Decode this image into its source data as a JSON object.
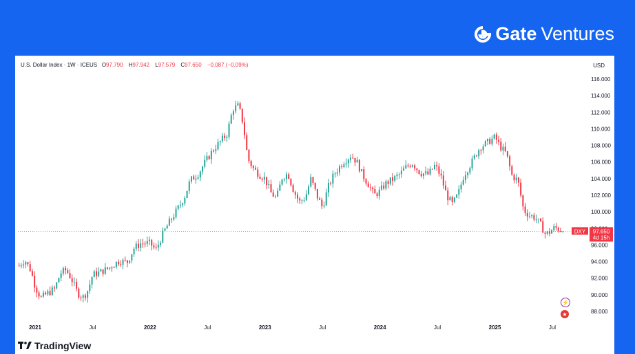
{
  "brand": {
    "mark": "Gate",
    "suffix": "Ventures",
    "icon": "gate-logo-icon"
  },
  "header": {
    "symbol": "U.S. Dollar Index · 1W · ICEUS",
    "o_label": "O",
    "o_val": "97.790",
    "h_label": "H",
    "h_val": "97.942",
    "l_label": "L",
    "l_val": "97.579",
    "c_label": "C",
    "c_val": "97.650",
    "change": "−0.087 (−0.09%)"
  },
  "currency": "USD",
  "price_tag": {
    "ticker": "DXY",
    "price": "97.650",
    "countdown": "4d 15h"
  },
  "footer": {
    "logo_text": "TradingView"
  },
  "icons": [
    "lightning-icon",
    "us-flag-icon"
  ],
  "colors": {
    "up": "#26a69a",
    "down": "#f23645",
    "background": "#1565f0"
  },
  "chart_data": {
    "type": "candlestick",
    "interval": "1W",
    "y_ticks": [
      "88.000",
      "90.000",
      "92.000",
      "94.000",
      "96.000",
      "98.000",
      "100.000",
      "102.000",
      "104.000",
      "106.000",
      "108.000",
      "110.000",
      "112.000",
      "114.000",
      "116.000"
    ],
    "x_ticks": [
      {
        "label": "2021",
        "t": 0.0
      },
      {
        "label": "Jul",
        "t": 0.5
      },
      {
        "label": "2022",
        "t": 1.0
      },
      {
        "label": "Jul",
        "t": 1.5
      },
      {
        "label": "2023",
        "t": 2.0
      },
      {
        "label": "Jul",
        "t": 2.5
      },
      {
        "label": "2024",
        "t": 3.0
      },
      {
        "label": "Jul",
        "t": 3.5
      },
      {
        "label": "2025",
        "t": 4.0
      },
      {
        "label": "Jul",
        "t": 4.5
      }
    ],
    "ylim": [
      87,
      117
    ],
    "xlim": [
      -0.15,
      4.65
    ],
    "last_price": 97.65,
    "path_points": [
      [
        -0.14,
        93.5
      ],
      [
        -0.09,
        94.2
      ],
      [
        -0.04,
        93.0
      ],
      [
        0.0,
        91.0
      ],
      [
        0.05,
        89.6
      ],
      [
        0.11,
        90.2
      ],
      [
        0.17,
        90.7
      ],
      [
        0.22,
        92.6
      ],
      [
        0.27,
        93.0
      ],
      [
        0.32,
        91.8
      ],
      [
        0.37,
        90.2
      ],
      [
        0.42,
        89.7
      ],
      [
        0.46,
        90.6
      ],
      [
        0.5,
        92.4
      ],
      [
        0.58,
        92.8
      ],
      [
        0.65,
        93.3
      ],
      [
        0.73,
        94.1
      ],
      [
        0.8,
        93.9
      ],
      [
        0.86,
        95.6
      ],
      [
        0.92,
        96.2
      ],
      [
        1.0,
        96.2
      ],
      [
        1.05,
        95.4
      ],
      [
        1.12,
        97.6
      ],
      [
        1.17,
        98.8
      ],
      [
        1.23,
        100.1
      ],
      [
        1.3,
        101.8
      ],
      [
        1.35,
        103.8
      ],
      [
        1.42,
        104.6
      ],
      [
        1.48,
        106.0
      ],
      [
        1.55,
        107.5
      ],
      [
        1.62,
        108.6
      ],
      [
        1.67,
        109.4
      ],
      [
        1.72,
        112.4
      ],
      [
        1.77,
        112.8
      ],
      [
        1.81,
        110.6
      ],
      [
        1.85,
        106.4
      ],
      [
        1.9,
        105.2
      ],
      [
        1.95,
        104.5
      ],
      [
        2.0,
        104.0
      ],
      [
        2.05,
        102.3
      ],
      [
        2.1,
        101.6
      ],
      [
        2.15,
        104.2
      ],
      [
        2.2,
        104.6
      ],
      [
        2.25,
        102.5
      ],
      [
        2.3,
        101.2
      ],
      [
        2.35,
        101.7
      ],
      [
        2.4,
        104.0
      ],
      [
        2.45,
        102.0
      ],
      [
        2.5,
        100.5
      ],
      [
        2.55,
        103.0
      ],
      [
        2.6,
        104.5
      ],
      [
        2.68,
        106.0
      ],
      [
        2.75,
        106.8
      ],
      [
        2.8,
        106.0
      ],
      [
        2.85,
        104.4
      ],
      [
        2.9,
        103.3
      ],
      [
        2.95,
        102.0
      ],
      [
        3.0,
        102.5
      ],
      [
        3.05,
        103.4
      ],
      [
        3.12,
        104.0
      ],
      [
        3.18,
        104.6
      ],
      [
        3.22,
        105.3
      ],
      [
        3.28,
        105.9
      ],
      [
        3.35,
        104.7
      ],
      [
        3.42,
        104.5
      ],
      [
        3.48,
        105.6
      ],
      [
        3.53,
        104.3
      ],
      [
        3.58,
        102.0
      ],
      [
        3.63,
        100.9
      ],
      [
        3.68,
        102.1
      ],
      [
        3.73,
        104.4
      ],
      [
        3.8,
        106.0
      ],
      [
        3.87,
        107.8
      ],
      [
        3.93,
        108.3
      ],
      [
        4.0,
        109.0
      ],
      [
        4.05,
        107.8
      ],
      [
        4.1,
        107.0
      ],
      [
        4.15,
        104.3
      ],
      [
        4.2,
        103.8
      ],
      [
        4.25,
        100.2
      ],
      [
        4.3,
        99.6
      ],
      [
        4.35,
        99.3
      ],
      [
        4.4,
        98.4
      ],
      [
        4.44,
        97.3
      ],
      [
        4.48,
        97.6
      ],
      [
        4.52,
        98.1
      ],
      [
        4.56,
        97.9
      ],
      [
        4.6,
        97.65
      ]
    ]
  }
}
